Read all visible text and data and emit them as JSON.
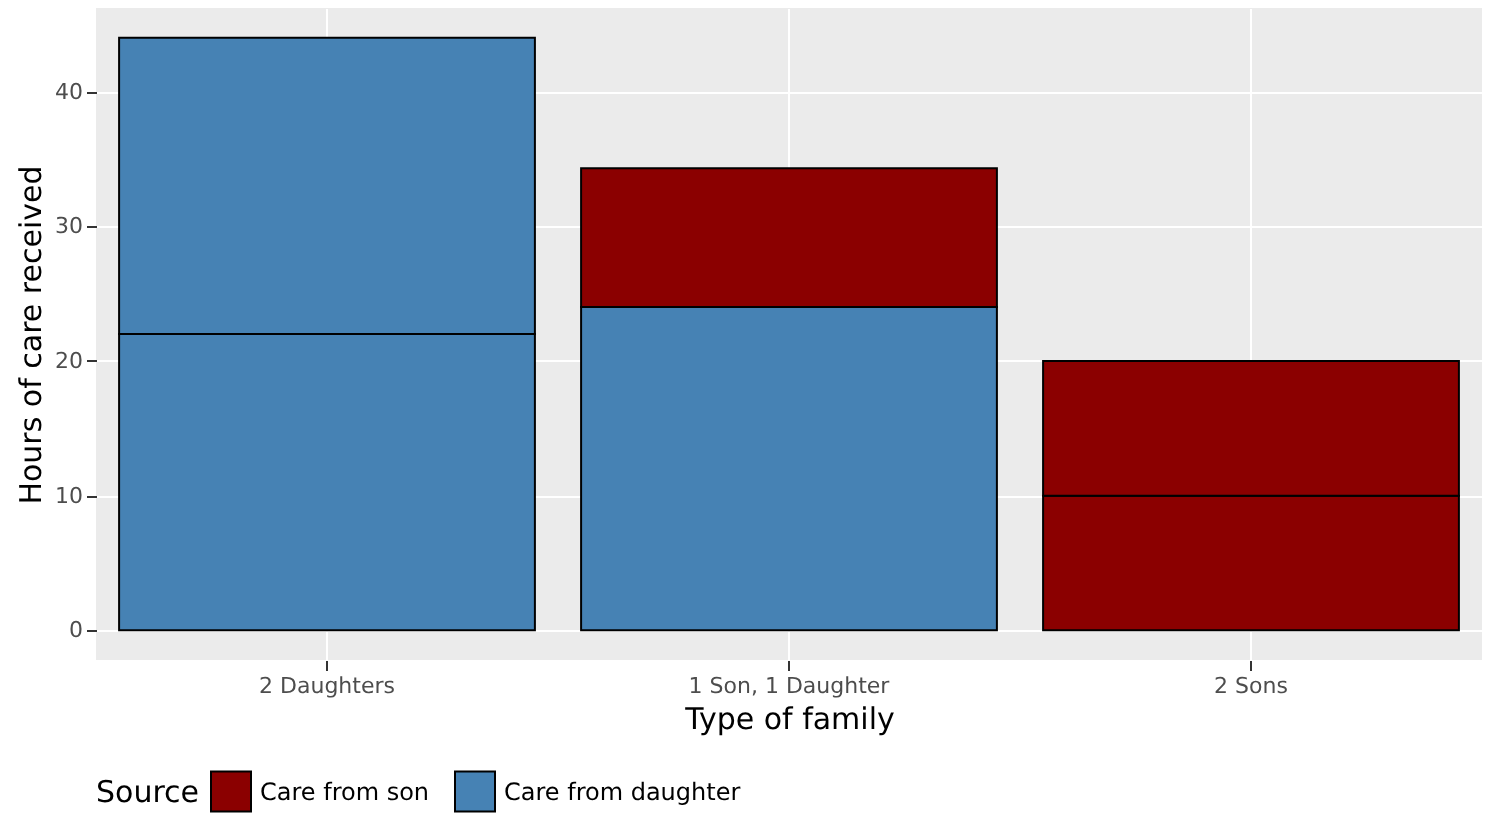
{
  "chart_data": {
    "type": "bar",
    "stacked": true,
    "xlabel": "Type of family",
    "ylabel": "Hours of care received",
    "legend_title": "Source",
    "categories": [
      "2 Daughters",
      "1 Son, 1 Daughter",
      "2 Sons"
    ],
    "series": [
      {
        "name": "Care from daughter",
        "color": "#4682b4",
        "values": [
          22,
          24,
          null
        ]
      },
      {
        "color": "#4682b4",
        "values": [
          22,
          null,
          null
        ]
      },
      {
        "name": "Care from son",
        "color": "#8b0000",
        "values": [
          null,
          10.3,
          10
        ]
      },
      {
        "color": "#8b0000",
        "values": [
          null,
          null,
          10
        ]
      }
    ],
    "ylim": [
      -2.2,
      46.2
    ],
    "yticks": [
      0,
      10,
      20,
      30,
      40
    ],
    "grid": true,
    "legend": "bottom"
  }
}
